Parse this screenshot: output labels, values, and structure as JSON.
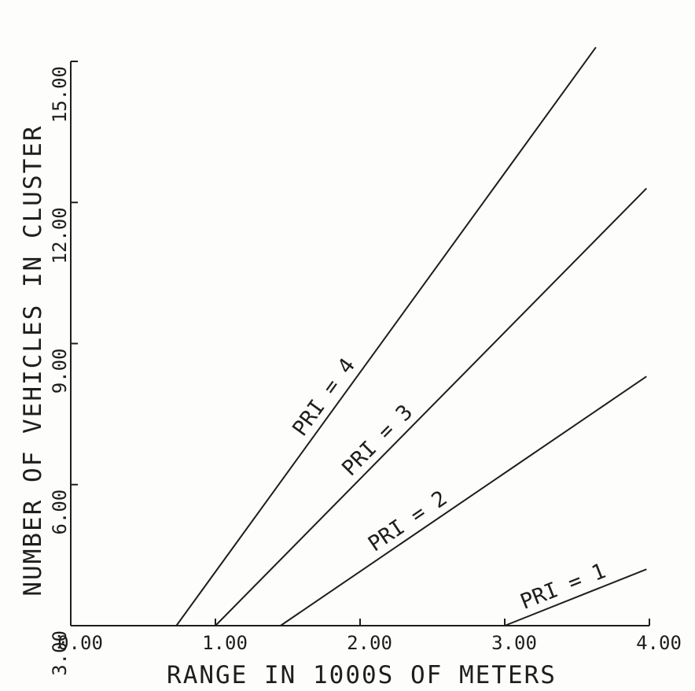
{
  "chart_data": {
    "type": "line",
    "title": "",
    "xlabel": "RANGE IN 1000S OF METERS",
    "ylabel": "NUMBER OF VEHICLES IN CLUSTER",
    "xlim": [
      0,
      4
    ],
    "ylim": [
      3,
      15
    ],
    "xticks": [
      0,
      1,
      2,
      3,
      4
    ],
    "xtick_labels": [
      "0.00",
      "1.00",
      "2.00",
      "3.00",
      "4.00"
    ],
    "yticks": [
      3,
      6,
      9,
      12,
      15
    ],
    "ytick_labels": [
      "3.00",
      "6.00",
      "9.00",
      "12.00",
      "15.00"
    ],
    "grid": false,
    "legend": "none",
    "series": [
      {
        "name": "PRI = 4",
        "x": [
          0.73,
          3.63
        ],
        "y": [
          3.0,
          15.3
        ]
      },
      {
        "name": "PRI = 3",
        "x": [
          1.0,
          3.98
        ],
        "y": [
          3.0,
          12.3
        ]
      },
      {
        "name": "PRI = 2",
        "x": [
          1.45,
          3.98
        ],
        "y": [
          3.0,
          8.3
        ]
      },
      {
        "name": "PRI = 1",
        "x": [
          3.0,
          3.98
        ],
        "y": [
          3.0,
          4.2
        ]
      }
    ]
  }
}
